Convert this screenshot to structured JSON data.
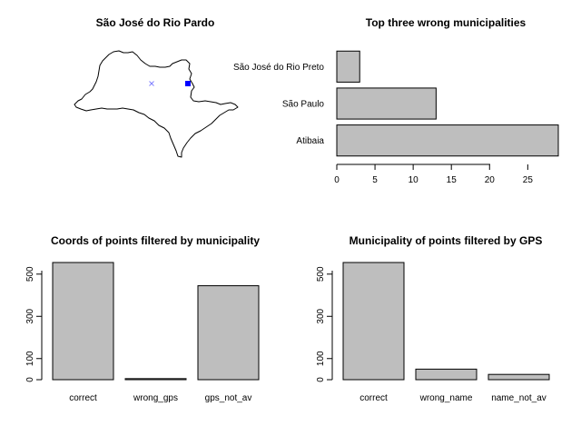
{
  "colors": {
    "bar_fill": "#bebebe",
    "bar_stroke": "#000000",
    "point_blue": "#0000ff",
    "point_light": "#8080ff"
  },
  "map_panel": {
    "title": "São José do Rio Pardo",
    "shape": "São Paulo state outline",
    "markers": [
      "light-blue cross",
      "blue filled square"
    ]
  },
  "chart_data": [
    {
      "type": "bar",
      "orientation": "horizontal",
      "title": "Top three wrong municipalities",
      "categories": [
        "Atibaia",
        "São Paulo",
        "São José do Rio Preto"
      ],
      "values": [
        29,
        13,
        3
      ],
      "xlim": [
        0,
        29
      ],
      "xticks": [
        0,
        5,
        10,
        15,
        20,
        25
      ],
      "xlabel": "",
      "ylabel": ""
    },
    {
      "type": "bar",
      "title": "Coords of points filtered by municipality",
      "categories": [
        "correct",
        "wrong_gps",
        "gps_not_av"
      ],
      "values": [
        555,
        5,
        445
      ],
      "ylim": [
        0,
        555
      ],
      "yticks": [
        0,
        100,
        300,
        500
      ],
      "xlabel": "",
      "ylabel": ""
    },
    {
      "type": "bar",
      "title": "Municipality of points filtered by GPS",
      "categories": [
        "correct",
        "wrong_name",
        "name_not_av"
      ],
      "values": [
        555,
        50,
        25
      ],
      "ylim": [
        0,
        555
      ],
      "yticks": [
        0,
        100,
        300,
        500
      ],
      "xlabel": "",
      "ylabel": ""
    }
  ]
}
